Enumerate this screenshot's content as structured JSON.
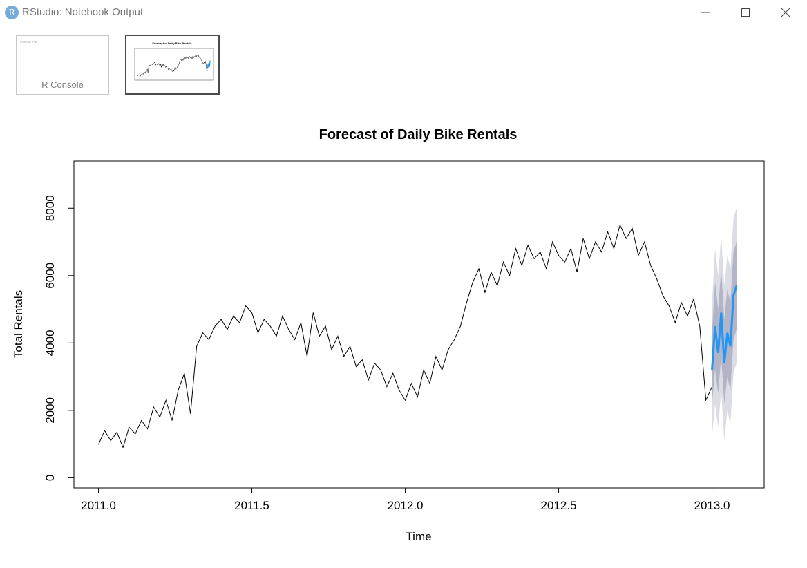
{
  "window": {
    "app_icon_letter": "R",
    "title": "RStudio: Notebook Output",
    "icons": [
      "minimize-icon",
      "maximize-icon",
      "close-icon"
    ]
  },
  "thumbnails": [
    {
      "label": "R Console",
      "preview_text": "Forecast: Flat"
    },
    {
      "label": "",
      "preview_title": "Forecast of Daily Bike Rentals"
    }
  ],
  "chart_data": {
    "type": "line",
    "title": "Forecast of Daily Bike Rentals",
    "xlabel": "Time",
    "ylabel": "Total Rentals",
    "xlim": [
      2010.92,
      2013.17
    ],
    "ylim": [
      -300,
      9400
    ],
    "x_ticks": [
      2011.0,
      2011.5,
      2012.0,
      2012.5,
      2013.0
    ],
    "x_tick_labels": [
      "2011.0",
      "2011.5",
      "2012.0",
      "2012.5",
      "2013.0"
    ],
    "y_ticks": [
      0,
      2000,
      4000,
      6000,
      8000
    ],
    "y_tick_labels": [
      "0",
      "2000",
      "4000",
      "6000",
      "8000"
    ],
    "grid": false,
    "series": [
      {
        "role": "observed",
        "color": "#000000",
        "x": [
          2011.0,
          2011.02,
          2011.04,
          2011.06,
          2011.08,
          2011.1,
          2011.12,
          2011.14,
          2011.16,
          2011.18,
          2011.2,
          2011.22,
          2011.24,
          2011.26,
          2011.28,
          2011.3,
          2011.32,
          2011.34,
          2011.36,
          2011.38,
          2011.4,
          2011.42,
          2011.44,
          2011.46,
          2011.48,
          2011.5,
          2011.52,
          2011.54,
          2011.56,
          2011.58,
          2011.6,
          2011.62,
          2011.64,
          2011.66,
          2011.68,
          2011.7,
          2011.72,
          2011.74,
          2011.76,
          2011.78,
          2011.8,
          2011.82,
          2011.84,
          2011.86,
          2011.88,
          2011.9,
          2011.92,
          2011.94,
          2011.96,
          2011.98,
          2012.0,
          2012.02,
          2012.04,
          2012.06,
          2012.08,
          2012.1,
          2012.12,
          2012.14,
          2012.16,
          2012.18,
          2012.2,
          2012.22,
          2012.24,
          2012.26,
          2012.28,
          2012.3,
          2012.32,
          2012.34,
          2012.36,
          2012.38,
          2012.4,
          2012.42,
          2012.44,
          2012.46,
          2012.48,
          2012.5,
          2012.52,
          2012.54,
          2012.56,
          2012.58,
          2012.6,
          2012.62,
          2012.64,
          2012.66,
          2012.68,
          2012.7,
          2012.72,
          2012.74,
          2012.76,
          2012.78,
          2012.8,
          2012.82,
          2012.84,
          2012.86,
          2012.88,
          2012.9,
          2012.92,
          2012.94,
          2012.96,
          2012.98,
          2013.0
        ],
        "values": [
          985,
          1400,
          1100,
          1350,
          900,
          1500,
          1300,
          1700,
          1450,
          2100,
          1800,
          2300,
          1700,
          2600,
          3100,
          1900,
          3900,
          4300,
          4100,
          4500,
          4700,
          4400,
          4800,
          4600,
          5100,
          4900,
          4300,
          4700,
          4500,
          4200,
          4800,
          4400,
          4100,
          4600,
          3600,
          4900,
          4200,
          4500,
          3800,
          4200,
          3600,
          3900,
          3300,
          3500,
          2900,
          3400,
          3200,
          2700,
          3100,
          2600,
          2300,
          2800,
          2400,
          3200,
          2800,
          3600,
          3200,
          3800,
          4100,
          4500,
          5200,
          5800,
          6200,
          5500,
          6100,
          5700,
          6400,
          6000,
          6800,
          6300,
          6900,
          6500,
          6700,
          6200,
          7000,
          6600,
          6400,
          6800,
          6100,
          7100,
          6500,
          7000,
          6700,
          7300,
          6800,
          7500,
          7100,
          7400,
          6600,
          7000,
          6300,
          5900,
          5400,
          5100,
          4600,
          5200,
          4800,
          5300,
          4500,
          2300,
          2700
        ]
      },
      {
        "role": "forecast",
        "color": "#2196f3",
        "x": [
          2013.0,
          2013.01,
          2013.02,
          2013.03,
          2013.04,
          2013.05,
          2013.06,
          2013.07,
          2013.08
        ],
        "values": [
          3200,
          4500,
          3700,
          4900,
          3400,
          4300,
          3900,
          5400,
          5700
        ],
        "interval_80": [
          [
            2200,
            4300
          ],
          [
            3200,
            5800
          ],
          [
            2500,
            5000
          ],
          [
            3600,
            6200
          ],
          [
            2200,
            4700
          ],
          [
            3000,
            5600
          ],
          [
            2600,
            5200
          ],
          [
            4100,
            6700
          ],
          [
            4400,
            7000
          ]
        ],
        "interval_95": [
          [
            1200,
            5200
          ],
          [
            2200,
            6800
          ],
          [
            1500,
            6000
          ],
          [
            2600,
            7200
          ],
          [
            1100,
            5700
          ],
          [
            2000,
            6600
          ],
          [
            1600,
            6200
          ],
          [
            3100,
            7700
          ],
          [
            3400,
            8000
          ]
        ]
      }
    ]
  }
}
